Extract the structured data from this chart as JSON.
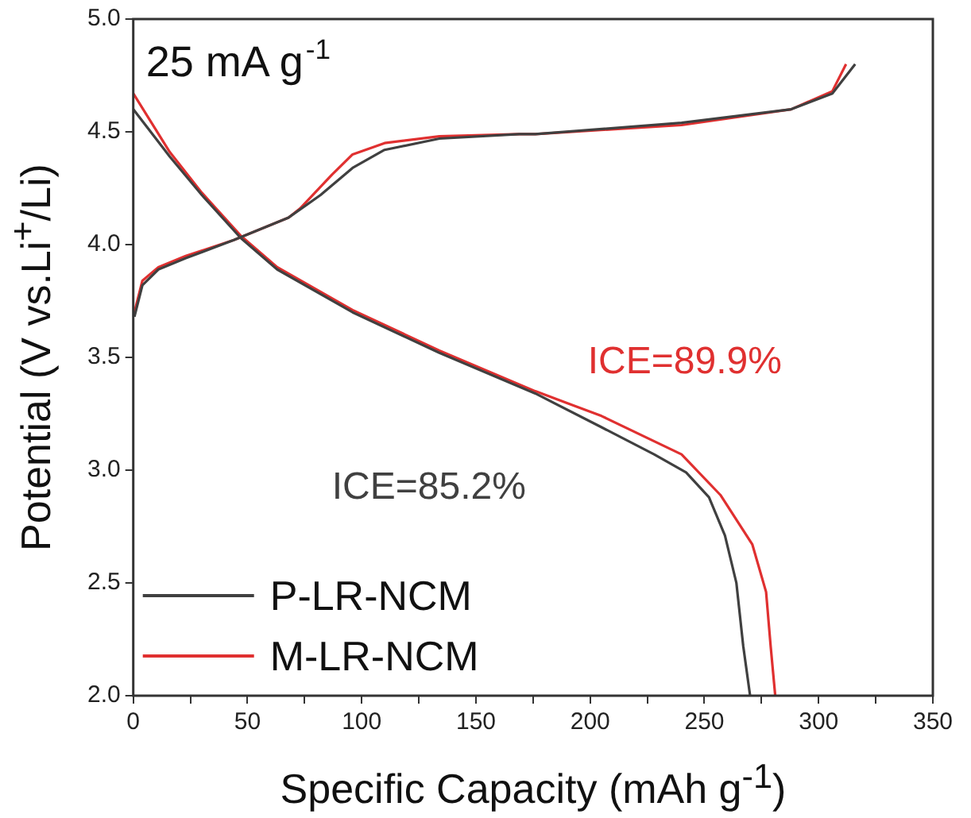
{
  "chart_data": {
    "type": "line",
    "xlabel": "Specific Capacity (mAh g$^{-1}$)",
    "ylabel": "Potential (V vs.Li$^{+}$/Li)",
    "annotations": [
      "25 mA g$^{-1}$",
      "ICE=85.2%",
      "ICE=89.9%"
    ],
    "xlim": [
      0,
      350
    ],
    "ylim": [
      2,
      5
    ],
    "xticks": [
      0,
      {
        "value": 25,
        "label": null
      },
      50,
      {
        "value": 75,
        "label": null
      },
      100,
      {
        "value": 125,
        "label": null
      },
      150,
      {
        "value": 175,
        "label": null
      },
      200,
      {
        "value": 225,
        "label": null
      },
      250,
      {
        "value": 275,
        "label": null
      },
      300,
      {
        "value": 325,
        "label": null
      },
      350
    ],
    "yticks": [
      {
        "value": 2,
        "label": "2.0"
      },
      2.5,
      {
        "value": 3,
        "label": "3.0"
      },
      3.5,
      {
        "value": 4,
        "label": "4.0"
      },
      4.5,
      {
        "value": 5,
        "label": "5.0"
      }
    ],
    "grid": false,
    "legend": "bottom left",
    "marker": "none",
    "line_style": "solid",
    "series": [
      {
        "name": "P-LR-NCM",
        "color": "#404040",
        "x": [
          0.5,
          4,
          11,
          23,
          44,
          68,
          82,
          96,
          110,
          134,
          169,
          176,
          240,
          288,
          306,
          316
        ],
        "values": [
          3.68,
          3.82,
          3.89,
          3.94,
          4.02,
          4.12,
          4.22,
          4.34,
          4.42,
          4.47,
          4.49,
          4.49,
          4.54,
          4.6,
          4.67,
          4.8
        ]
      },
      {
        "name": "M-LR-NCM",
        "color": "#e03030",
        "x": [
          0.5,
          4,
          11,
          23,
          44,
          68,
          73,
          87,
          96,
          110,
          134,
          169,
          176,
          240,
          288,
          306,
          312
        ],
        "values": [
          3.7,
          3.84,
          3.9,
          3.95,
          4.02,
          4.12,
          4.16,
          4.31,
          4.4,
          4.45,
          4.48,
          4.49,
          4.49,
          4.53,
          4.6,
          4.68,
          4.8
        ]
      },
      {
        "color": "#404040",
        "x": [
          0,
          16,
          30,
          47,
          63,
          96,
          134,
          176,
          205,
          228,
          242,
          252,
          259,
          264,
          267,
          270
        ],
        "values": [
          4.6,
          4.39,
          4.22,
          4.03,
          3.89,
          3.7,
          3.52,
          3.34,
          3.19,
          3.07,
          2.99,
          2.88,
          2.71,
          2.5,
          2.22,
          2
        ]
      },
      {
        "color": "#e03030",
        "x": [
          0,
          16,
          30,
          47,
          63,
          96,
          134,
          176,
          205,
          240,
          257,
          271,
          277,
          279,
          281
        ],
        "values": [
          4.67,
          4.41,
          4.23,
          4.04,
          3.9,
          3.71,
          3.53,
          3.35,
          3.24,
          3.07,
          2.89,
          2.67,
          2.46,
          2.22,
          2
        ]
      }
    ]
  }
}
